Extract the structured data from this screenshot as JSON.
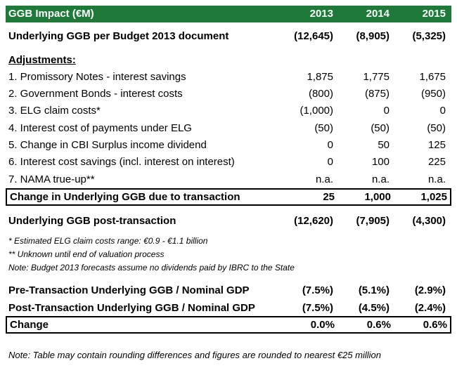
{
  "table": {
    "header": {
      "label": "GGB Impact (€M)",
      "years": [
        "2013",
        "2014",
        "2015"
      ]
    },
    "underlying": {
      "label": "Underlying GGB per Budget 2013 document",
      "values": [
        "(12,645)",
        "(8,905)",
        "(5,325)"
      ]
    },
    "adjustments_title": "Adjustments:",
    "adjustments": [
      {
        "label": "1. Promissory Notes - interest savings",
        "values": [
          "1,875",
          "1,775",
          "1,675"
        ]
      },
      {
        "label": "2. Government Bonds - interest costs",
        "values": [
          "(800)",
          "(875)",
          "(950)"
        ]
      },
      {
        "label": "3. ELG claim costs*",
        "values": [
          "(1,000)",
          "0",
          "0"
        ]
      },
      {
        "label": "4. Interest cost of payments under ELG",
        "values": [
          "(50)",
          "(50)",
          "(50)"
        ]
      },
      {
        "label": "5. Change in CBI Surplus income dividend",
        "values": [
          "0",
          "50",
          "125"
        ]
      },
      {
        "label": "6. Interest cost savings (incl. interest on interest)",
        "values": [
          "0",
          "100",
          "225"
        ]
      },
      {
        "label": "7. NAMA true-up**",
        "values": [
          "n.a.",
          "n.a.",
          "n.a."
        ]
      }
    ],
    "change_row": {
      "label": "Change in Underlying GGB due to transaction",
      "values": [
        "25",
        "1,000",
        "1,025"
      ]
    },
    "post_row": {
      "label": "Underlying GGB post-transaction",
      "values": [
        "(12,620)",
        "(7,905)",
        "(4,300)"
      ]
    },
    "notes": [
      "* Estimated ELG claim costs range: €0.9 - €1.1 billion",
      "** Unknown until end of valuation process",
      "Note: Budget 2013 forecasts assume no dividends paid by IBRC to the State"
    ],
    "gdp_rows": [
      {
        "label": "Pre-Transaction Underlying GGB / Nominal GDP",
        "values": [
          "(7.5%)",
          "(5.1%)",
          "(2.9%)"
        ]
      },
      {
        "label": "Post-Transaction Underlying GGB / Nominal GDP",
        "values": [
          "(7.5%)",
          "(4.5%)",
          "(2.4%)"
        ]
      }
    ],
    "final_change": {
      "label": "Change",
      "values": [
        "0.0%",
        "0.6%",
        "0.6%"
      ]
    },
    "footnote": "Note: Table may contain rounding differences and figures are rounded to nearest €25 million"
  },
  "colors": {
    "header_bg": "#1f7a3a",
    "header_text": "#ffffff"
  }
}
